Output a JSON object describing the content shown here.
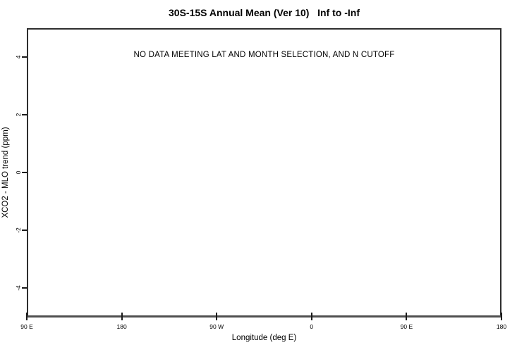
{
  "chart_data": {
    "type": "scatter",
    "title": "30S-15S Annual Mean (Ver 10)   Inf to -Inf",
    "xlabel": "Longitude (deg E)",
    "ylabel": "XCO2 - MLO trend (ppm)",
    "x_tick_labels": [
      "90 E",
      "180",
      "90 W",
      "0",
      "90 E",
      "180"
    ],
    "y_tick_values": [
      4,
      2,
      0,
      -2,
      -4
    ],
    "ylim": [
      -5,
      5
    ],
    "series": [],
    "annotations": [
      "NO DATA MEETING LAT AND MONTH SELECTION, AND N CUTOFF"
    ],
    "grid": false,
    "legend": "none"
  },
  "colors": {
    "background": "#ffffff",
    "box_border": "#2e2e2e",
    "bottom_axis": "#4f4f4f",
    "tick_mark": "#1a1a1a",
    "text": "#000000"
  }
}
